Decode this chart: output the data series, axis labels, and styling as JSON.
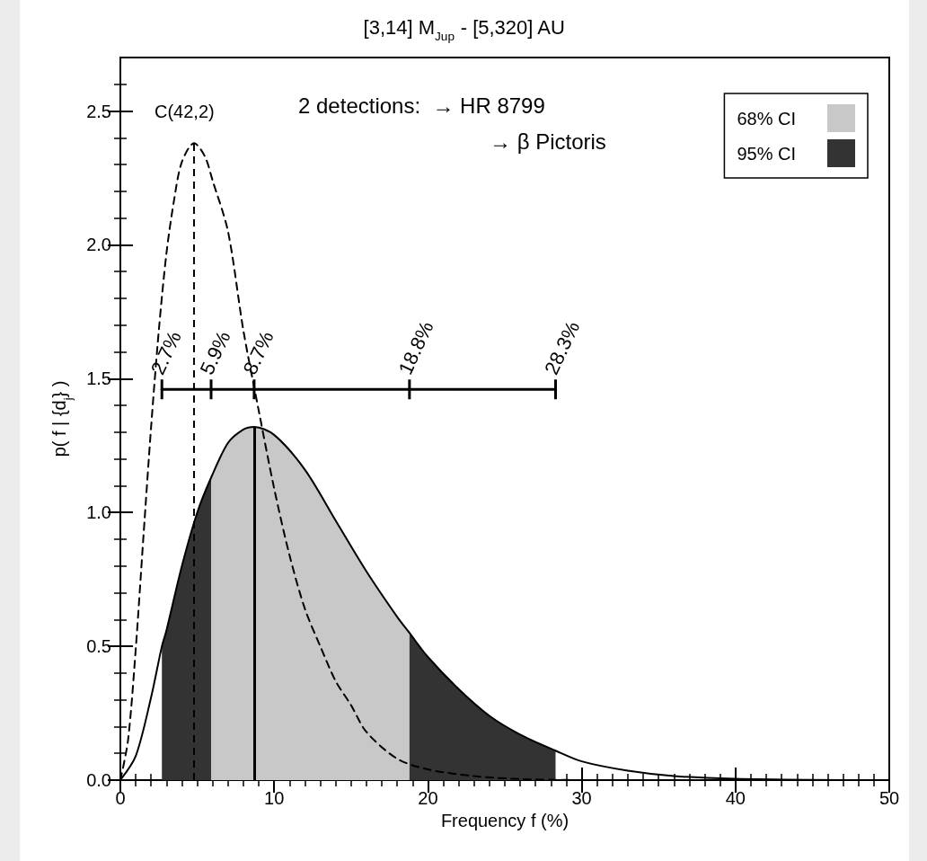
{
  "chart_data": {
    "type": "line",
    "title": "[3,14] M$_{Jup}$ - [5,320] AU",
    "xlabel": "Frequency f (%)",
    "ylabel": "p( f | {d$_{j}$} )",
    "xlim": [
      0,
      50
    ],
    "xticks": [
      0,
      10,
      20,
      30,
      40,
      50
    ],
    "ylim": [
      0,
      2.7
    ],
    "yticks": [
      {
        "value": 0,
        "label": "0.0"
      },
      0.5,
      {
        "value": 1,
        "label": "1.0"
      },
      1.5,
      {
        "value": 2,
        "label": "2.0"
      },
      2.5
    ],
    "grid": false,
    "legend": "top right",
    "marker": "none",
    "series": [
      {
        "color": "#000000",
        "line_style": "solid",
        "x": [
          0,
          1,
          2,
          2.7,
          3,
          4,
          5,
          5.9,
          7,
          8,
          8.7,
          10,
          12,
          14,
          16,
          18,
          18.8,
          20,
          22,
          24,
          26,
          28.3,
          30,
          33,
          36,
          40,
          45,
          50
        ],
        "values": [
          0,
          0.09,
          0.31,
          0.5,
          0.56,
          0.8,
          1.0,
          1.13,
          1.26,
          1.31,
          1.32,
          1.29,
          1.16,
          0.97,
          0.78,
          0.61,
          0.55,
          0.46,
          0.34,
          0.24,
          0.17,
          0.11,
          0.07,
          0.035,
          0.015,
          0.005,
          0.001,
          0
        ]
      },
      {
        "color": "#000000",
        "line_style": "dashed",
        "x": [
          0,
          0.5,
          1,
          1.5,
          2,
          2.5,
          3,
          3.5,
          4,
          4.8,
          5.5,
          6,
          7,
          8,
          9,
          10,
          11,
          12,
          13,
          14,
          15,
          16,
          18,
          20,
          23,
          26,
          30
        ],
        "values": [
          0,
          0.15,
          0.49,
          0.91,
          1.32,
          1.68,
          1.97,
          2.17,
          2.31,
          2.38,
          2.33,
          2.24,
          2.05,
          1.68,
          1.38,
          1.09,
          0.84,
          0.64,
          0.5,
          0.37,
          0.28,
          0.18,
          0.08,
          0.04,
          0.015,
          0.004,
          0
        ]
      },
      {
        "color": "#000000",
        "line_style": "solid",
        "x": [
          2.7,
          5.9,
          8.7,
          18.8,
          28.3
        ],
        "values": [
          1.46,
          1.46,
          1.46,
          1.46,
          1.46
        ]
      },
      {
        "type": "area",
        "name": "68% CI",
        "color": "#c8c8c8",
        "x": [
          5.9,
          7,
          8,
          8.7,
          10,
          12,
          14,
          16,
          18,
          18.8
        ],
        "values": [
          1.13,
          1.26,
          1.31,
          1.32,
          1.29,
          1.16,
          0.97,
          0.78,
          0.61,
          0.55
        ]
      },
      {
        "type": "area",
        "name": "95% CI",
        "color": "#333333",
        "x": [
          2.7,
          3,
          4,
          5,
          5.9,
          12,
          18.8,
          20,
          22,
          24,
          26,
          28.3
        ],
        "values": [
          0.5,
          0.56,
          0.8,
          1.0,
          1.13,
          null,
          0.55,
          0.46,
          0.34,
          0.24,
          0.17,
          0.11
        ]
      }
    ],
    "ref_lines": [
      {
        "axis": "x",
        "value": 8.7,
        "line_style": "solid"
      },
      {
        "axis": "x",
        "value": 4.8,
        "line_style": "dashed"
      }
    ],
    "annotations": [
      "C(42,2)",
      "2 detections:  → HR 8799",
      "→ β Pictoris",
      {
        "text": "2.7%",
        "x": 2.7,
        "y": 1.46
      },
      {
        "text": "5.9%",
        "x": 5.9,
        "y": 1.46
      },
      {
        "text": "8.7%",
        "x": 8.7,
        "y": 1.46
      },
      {
        "text": "18.8%",
        "x": 18.8,
        "y": 1.46
      },
      {
        "text": "28.3%",
        "x": 28.3,
        "y": 1.46
      }
    ]
  }
}
